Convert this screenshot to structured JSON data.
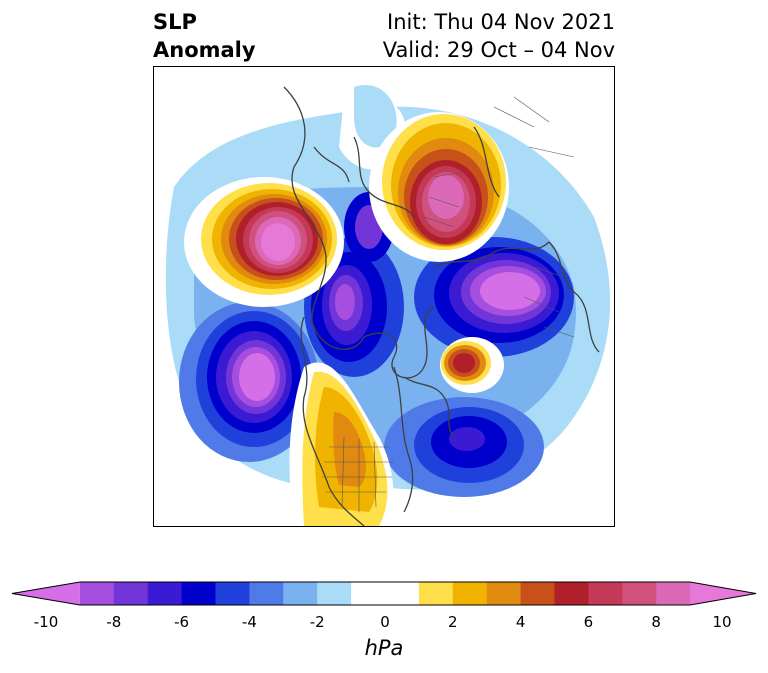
{
  "header": {
    "variable": "SLP",
    "subtitle": "Anomaly",
    "init": "Init: Thu 04 Nov 2021",
    "valid": "Valid: 29 Oct – 04 Nov"
  },
  "colorbar": {
    "unit": "hPa",
    "ticks": [
      "-10",
      "-8",
      "-6",
      "-4",
      "-2",
      "0",
      "2",
      "4",
      "6",
      "8",
      "10"
    ],
    "colors": [
      "#d46fe8",
      "#a64ee0",
      "#7236d8",
      "#3b1ad4",
      "#0000cc",
      "#2040dc",
      "#4f7ae8",
      "#7ab2f0",
      "#aadcf8",
      "#ffffff",
      "#ffffff",
      "#ffe04a",
      "#f0b400",
      "#e08a10",
      "#c8501a",
      "#b0202a",
      "#c43858",
      "#d0507e",
      "#dc68b8",
      "#e678d8"
    ]
  },
  "map": {
    "projection": "polar stereographic",
    "region": "Northern Hemisphere"
  }
}
